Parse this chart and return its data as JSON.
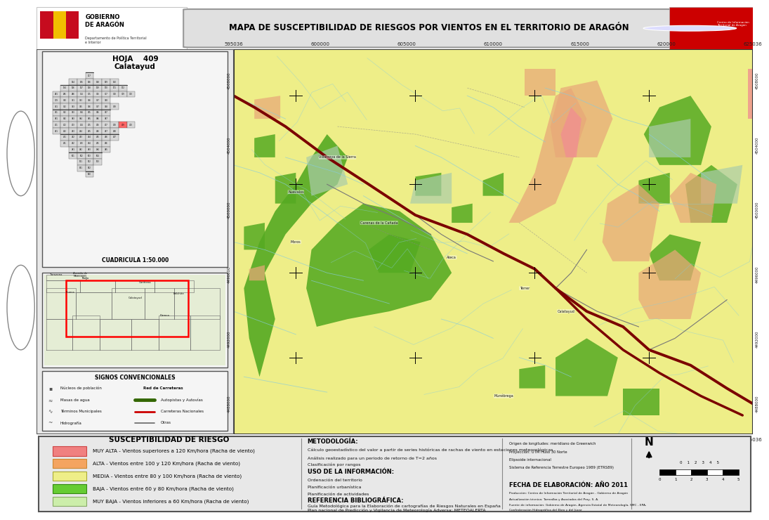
{
  "title": "MAPA DE SUSCEPTIBILIDAD DE RIESGOS POR VIENTOS EN EL TERRITORIO DE ARAGÓN",
  "hoja_number": "409",
  "hoja_name": "Calatayud",
  "cuadricula": "CUADRICULA 1:50.000",
  "signos_title": "SIGNOS CONVENCIONALES",
  "susceptibilidad_title": "SUSCEPTIBILIDAD DE RIESGO",
  "legend_items": [
    {
      "color": "#F08080",
      "label": "MUY ALTA - Vientos superiores a 120 Km/hora (Racha de viento)",
      "edge": "#CC4444"
    },
    {
      "color": "#F4A460",
      "label": "ALTA - Vientos entre 100 y 120 Km/hora (Racha de viento)",
      "edge": "#CC8833"
    },
    {
      "color": "#EEEE88",
      "label": "MEDIA - Vientos entre 80 y 100 Km/hora (Racha de viento)",
      "edge": "#AAAA33"
    },
    {
      "color": "#66CC33",
      "label": "BAJA - Vientos entre 60 y 80 Km/hora (Racha de viento)",
      "edge": "#338811"
    },
    {
      "color": "#CCEEAA",
      "label": "MUY BAJA - Vientos inferiores a 60 Km/hora (Racha de viento)",
      "edge": "#88AA66"
    }
  ],
  "metodologia_title": "METODOLOGÍA:",
  "metodologia_lines": [
    "Cálculo geoestadístico del valor a partir de series históricas de rachas de viento en estaciones meteorológicas",
    "Análisis realizado para un periodo de retorno de T=2 años",
    "Clasificación por rangos"
  ],
  "uso_title": "USO DE LA INFORMACIÓN:",
  "uso_lines": [
    "Ordenación del territorio",
    "Planificación urbanística",
    "Planificación de actividades"
  ],
  "referencia_title": "REFERENCIA BIBLIOGRÁFICA:",
  "referencia_lines": [
    "Guía Metodológica para la Elaboración de cartografías de Riesgos Naturales en España",
    "Plan nacional de Predicción y Vigilancia de Meteorología Adversa: METEOALERTA"
  ],
  "fecha": "FECHA DE ELABORACIÓN: AÑO 2011",
  "map_bg_color": "#EEEE88",
  "coord_x_labels": [
    "595036",
    "600000",
    "605000",
    "610000",
    "615000",
    "620000",
    "625036"
  ],
  "coord_y_labels_left": [
    "4508000",
    "4504000",
    "4500000",
    "4496000",
    "4492000",
    "4488000"
  ],
  "scale_bar": [
    0,
    1,
    2,
    3,
    4,
    5
  ],
  "signos_items_left": [
    "Núcleos de población",
    "Masas de agua",
    "Términos Municipales",
    "Hidrografía"
  ],
  "signos_items_right": [
    "Red de Carreteras",
    "Autopistas y Autovías",
    "Carreteras Nacionales",
    "Otras"
  ],
  "road_colors": [
    "#336600",
    "#CC0000",
    "#666666"
  ],
  "header_title_bg": "#E0E0E0",
  "left_panel_bg": "#E8E8E8",
  "bottom_panel_bg": "#E8E8E8",
  "map_green_dark": "#55AA22",
  "map_green_light": "#AACCAA",
  "map_orange": "#E8A878",
  "map_pink": "#F09090",
  "map_road_dark": "#7B0000",
  "map_river_color": "#88CCDD",
  "map_border_color": "#333333"
}
